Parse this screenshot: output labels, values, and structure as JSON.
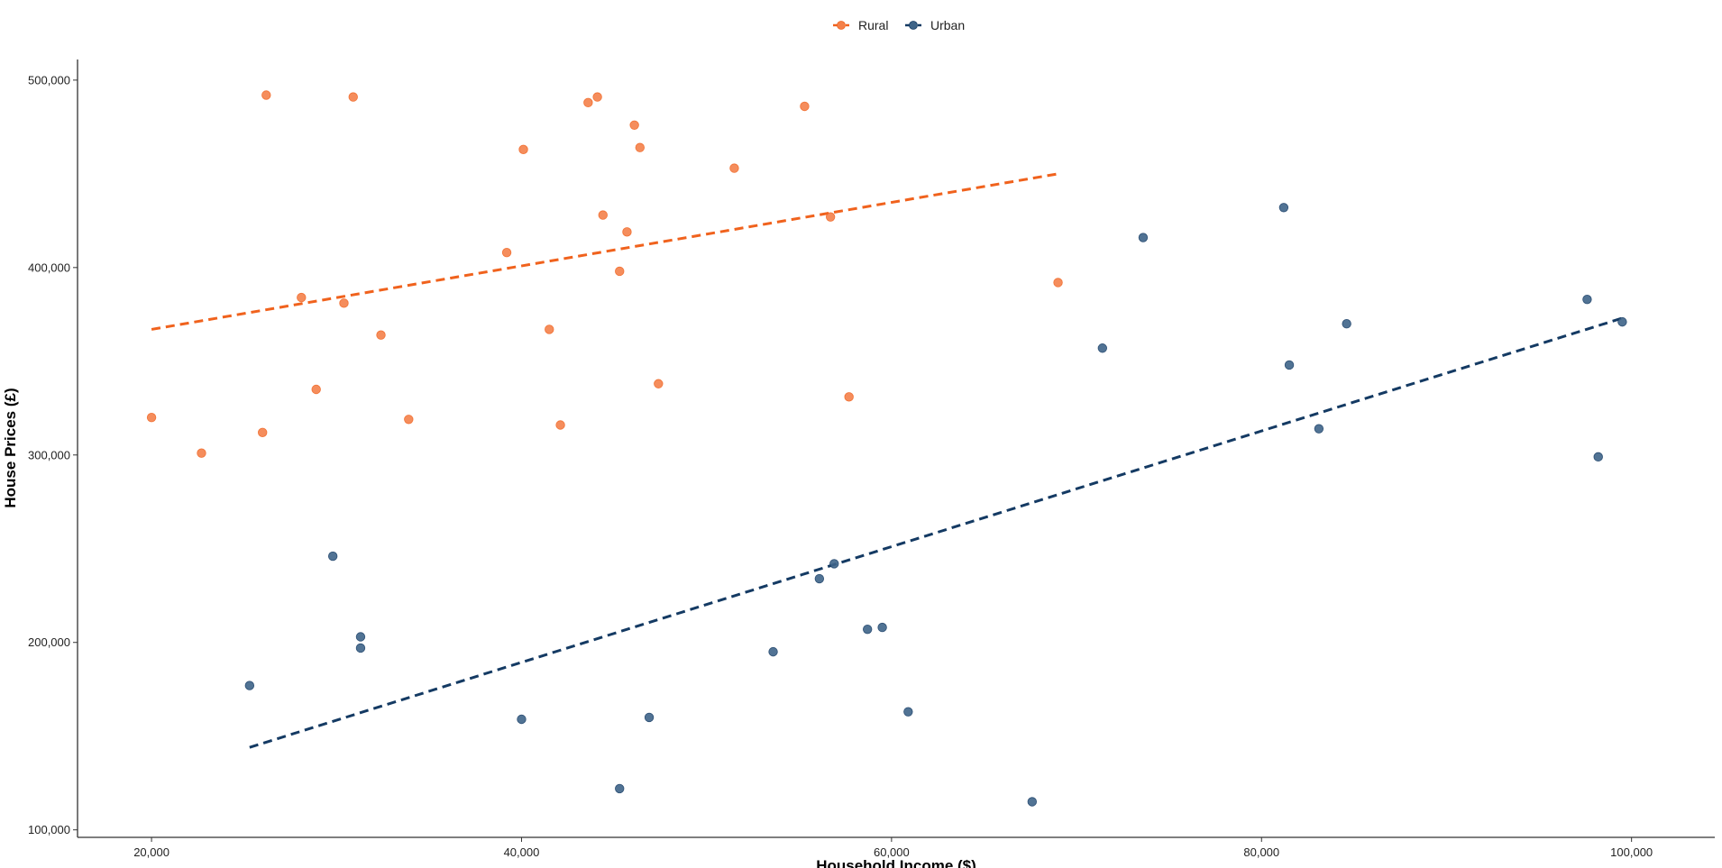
{
  "chart_data": {
    "type": "scatter",
    "title": "",
    "xlabel": "Household Income ($)",
    "ylabel": "House Prices (£)",
    "xlim": [
      16000,
      104500
    ],
    "ylim": [
      96000,
      511000
    ],
    "x_ticks": [
      20000,
      40000,
      60000,
      80000,
      100000
    ],
    "x_tick_labels": [
      "20,000",
      "40,000",
      "60,000",
      "80,000",
      "100,000"
    ],
    "y_ticks": [
      100000,
      200000,
      300000,
      400000,
      500000
    ],
    "y_tick_labels": [
      "100,000",
      "200,000",
      "300,000",
      "400,000",
      "500,000"
    ],
    "grid": false,
    "legend": {
      "position": "top-center"
    },
    "series": [
      {
        "name": "Rural",
        "color": "#f4814a",
        "trend_color": "#f0621d",
        "trend": {
          "x": [
            20000,
            69000
          ],
          "y": [
            367000,
            450000
          ]
        },
        "x": [
          20000,
          22700,
          26000,
          26200,
          28100,
          28900,
          30400,
          30900,
          32400,
          33900,
          39200,
          40100,
          41500,
          42100,
          43600,
          44100,
          44400,
          45300,
          45700,
          46100,
          46400,
          47400,
          51500,
          55300,
          56700,
          57700,
          69000
        ],
        "y": [
          320000,
          301000,
          312000,
          492000,
          384000,
          335000,
          381000,
          491000,
          364000,
          319000,
          408000,
          463000,
          367000,
          316000,
          488000,
          491000,
          428000,
          398000,
          419000,
          476000,
          464000,
          338000,
          453000,
          486000,
          427000,
          331000,
          392000
        ]
      },
      {
        "name": "Urban",
        "color": "#3e6488",
        "trend_color": "#143a63",
        "trend": {
          "x": [
            25300,
            99500
          ],
          "y": [
            144000,
            373000
          ]
        },
        "x": [
          25300,
          29800,
          31300,
          31300,
          40000,
          45300,
          46900,
          53600,
          56100,
          56900,
          58700,
          59500,
          60900,
          67600,
          71400,
          73600,
          81200,
          81500,
          83100,
          84600,
          97600,
          98200,
          99500
        ],
        "y": [
          177000,
          246000,
          203000,
          197000,
          159000,
          122000,
          160000,
          195000,
          234000,
          242000,
          207000,
          208000,
          163000,
          115000,
          357000,
          416000,
          432000,
          348000,
          314000,
          370000,
          383000,
          299000,
          371000
        ]
      }
    ]
  }
}
